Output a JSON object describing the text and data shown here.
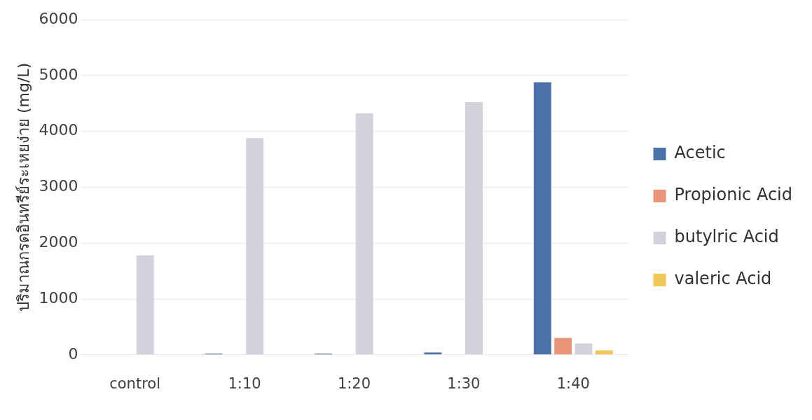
{
  "chart_data": {
    "type": "bar",
    "ylabel": "ปริมาณกรดอินทรีย์ระเหยง่าย (mg/L)",
    "categories": [
      "control",
      "1:10",
      "1:20",
      "1:30",
      "1:40"
    ],
    "series": [
      {
        "name": "Acetic",
        "color": "#4a72a8",
        "values": [
          0,
          20,
          20,
          40,
          4880
        ]
      },
      {
        "name": "Propionic Acid",
        "color": "#e8957a",
        "values": [
          0,
          0,
          0,
          0,
          300
        ]
      },
      {
        "name": "butylric Acid",
        "color": "#d2d2dc",
        "values": [
          1780,
          3880,
          4320,
          4520,
          200
        ]
      },
      {
        "name": "valeric Acid",
        "color": "#f0c85a",
        "values": [
          0,
          0,
          0,
          0,
          80
        ]
      }
    ],
    "ylim": [
      0,
      6000
    ],
    "yticks": [
      0,
      1000,
      2000,
      3000,
      4000,
      5000,
      6000
    ],
    "grid": "y",
    "legend": "right"
  }
}
